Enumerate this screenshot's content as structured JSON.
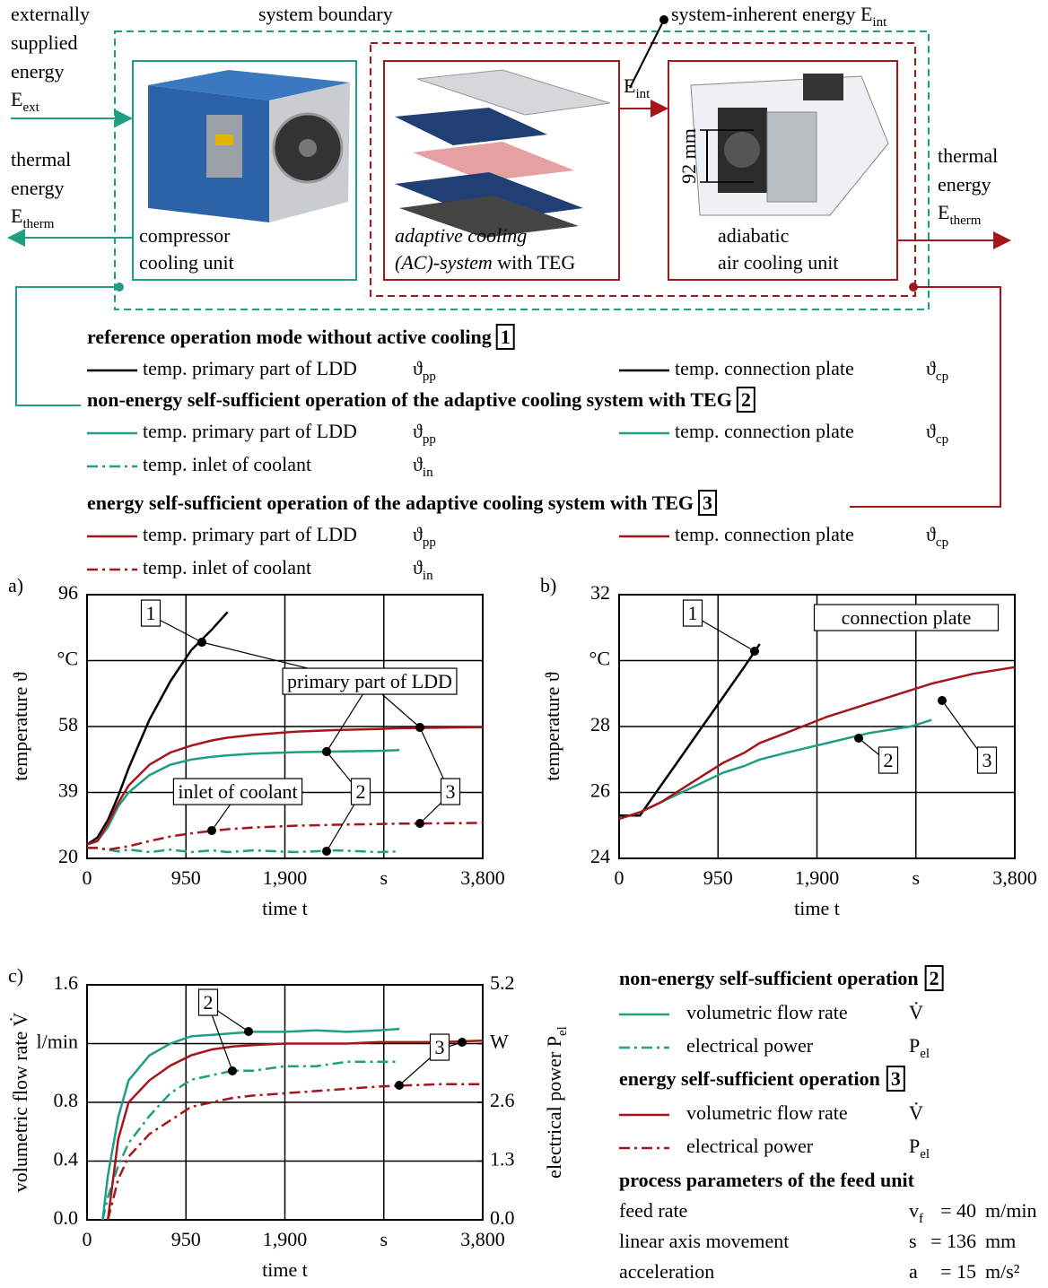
{
  "diagram": {
    "external_energy": {
      "lines": [
        "externally",
        "supplied",
        "energy"
      ],
      "symbol": "E",
      "sub": "ext"
    },
    "thermal_energy_left": {
      "lines": [
        "thermal",
        "energy"
      ],
      "symbol": "E",
      "sub": "therm"
    },
    "system_boundary": "system boundary",
    "inherent_energy": {
      "text": "system-inherent energy E",
      "sub": "int"
    },
    "flow_label": {
      "symbol": "E",
      "sub": "int"
    },
    "compressor": [
      "compressor",
      "cooling unit"
    ],
    "ac_system": {
      "line1": "adaptive cooling",
      "line2_italic": "(AC)-system",
      "line2_rest": " with TEG"
    },
    "air_unit": [
      "adiabatic",
      "air cooling unit"
    ],
    "dimension": "92 mm",
    "thermal_energy_right": {
      "lines": [
        "thermal",
        "energy"
      ],
      "symbol": "E",
      "sub": "therm"
    }
  },
  "legend": {
    "sections": [
      {
        "title": "reference operation mode without active cooling",
        "number": "1",
        "color": "#000000",
        "entries": [
          {
            "label": "temp. primary part of LDD",
            "symbol": "ϑ",
            "sub": "pp",
            "dash": "solid"
          },
          {
            "label": "temp. connection plate",
            "symbol": "ϑ",
            "sub": "cp",
            "dash": "solid"
          }
        ]
      },
      {
        "title": "non-energy self-sufficient operation of the adaptive cooling system with TEG",
        "number": "2",
        "color": "#1f9e83",
        "entries": [
          {
            "label": "temp. primary part of LDD",
            "symbol": "ϑ",
            "sub": "pp",
            "dash": "solid"
          },
          {
            "label": "temp. connection plate",
            "symbol": "ϑ",
            "sub": "cp",
            "dash": "solid"
          },
          {
            "label": "temp. inlet of coolant",
            "symbol": "ϑ",
            "sub": "in",
            "dash": "dash-dot"
          }
        ]
      },
      {
        "title": "energy self-sufficient operation of the adaptive cooling system with TEG",
        "number": "3",
        "color": "#a4161a",
        "entries": [
          {
            "label": "temp. primary part of LDD",
            "symbol": "ϑ",
            "sub": "pp",
            "dash": "solid"
          },
          {
            "label": "temp. connection plate",
            "symbol": "ϑ",
            "sub": "cp",
            "dash": "solid"
          },
          {
            "label": "temp. inlet of coolant",
            "symbol": "ϑ",
            "sub": "in",
            "dash": "dash-dot"
          }
        ]
      }
    ]
  },
  "chart_data": [
    {
      "type": "line",
      "panel": "a)",
      "xlabel": "time t",
      "ylabel": "temperature ϑ",
      "x": [
        0,
        100,
        200,
        300,
        400,
        600,
        800,
        1000,
        1200,
        1350,
        1600,
        2000,
        2400,
        2800,
        3000,
        3400,
        3800
      ],
      "xlim": [
        0,
        3800
      ],
      "xticks": [
        0,
        950,
        {
          "value": 1900,
          "label": "1,900"
        },
        {
          "value": 2850,
          "label": "s"
        },
        {
          "value": 3800,
          "label": "3,800"
        }
      ],
      "ylim": [
        20,
        96
      ],
      "yticks": [
        20,
        39,
        58,
        {
          "value": 77,
          "label": "°C"
        },
        96
      ],
      "grid": true,
      "series": [
        {
          "color": "#000000",
          "dash": "solid",
          "values": [
            24,
            26,
            31,
            38,
            46,
            60,
            71,
            80,
            86,
            91,
            null,
            null,
            null,
            null,
            null,
            null,
            null
          ]
        },
        {
          "color": "#1f9e83",
          "dash": "solid",
          "values": [
            24,
            25,
            29,
            35,
            39,
            44,
            47,
            48.5,
            49.3,
            49.7,
            50.2,
            50.6,
            50.8,
            51,
            51.2,
            null,
            null
          ]
        },
        {
          "color": "#a4161a",
          "dash": "solid",
          "values": [
            24,
            25,
            30,
            36,
            41,
            47,
            50.5,
            52.5,
            54,
            54.8,
            55.6,
            56.5,
            57,
            57.3,
            57.5,
            57.7,
            57.8
          ]
        },
        {
          "color": "#1f9e83",
          "dash": "dash-dot",
          "values": [
            23,
            23,
            22.5,
            22,
            22.5,
            21.8,
            22.5,
            21.8,
            22.3,
            21.8,
            22.3,
            21.8,
            22.3,
            21.8,
            22,
            null,
            null
          ]
        },
        {
          "color": "#a4161a",
          "dash": "dash-dot",
          "values": [
            23,
            23,
            22.5,
            23,
            23.5,
            25,
            26.3,
            27.2,
            27.9,
            28.4,
            28.9,
            29.4,
            29.7,
            29.9,
            30,
            30.1,
            30.2
          ]
        }
      ],
      "annotations": [
        "1",
        "primary part of LDD",
        "inlet of coolant",
        "2",
        "3"
      ]
    },
    {
      "type": "line",
      "panel": "b)",
      "xlabel": "time t",
      "ylabel": "temperature ϑ",
      "x": [
        0,
        200,
        400,
        600,
        800,
        1000,
        1200,
        1350,
        1600,
        2000,
        2400,
        2800,
        3000,
        3400,
        3800
      ],
      "xlim": [
        0,
        3800
      ],
      "xticks": [
        0,
        950,
        {
          "value": 1900,
          "label": "1,900"
        },
        {
          "value": 2850,
          "label": "s"
        },
        {
          "value": 3800,
          "label": "3,800"
        }
      ],
      "ylim": [
        24,
        32
      ],
      "yticks": [
        24,
        26,
        28,
        {
          "value": 30,
          "label": "°C"
        },
        32
      ],
      "grid": true,
      "series": [
        {
          "color": "#000000",
          "dash": "solid",
          "values": [
            25.3,
            25.3,
            26.2,
            27.1,
            28.0,
            28.9,
            29.8,
            30.5,
            null,
            null,
            null,
            null,
            null,
            null,
            null
          ]
        },
        {
          "color": "#1f9e83",
          "dash": "solid",
          "values": [
            25.2,
            25.4,
            25.7,
            26,
            26.3,
            26.6,
            26.8,
            27,
            27.2,
            27.5,
            27.8,
            28,
            28.2,
            null,
            null
          ]
        },
        {
          "color": "#a4161a",
          "dash": "solid",
          "values": [
            25.2,
            25.4,
            25.7,
            26.1,
            26.5,
            26.9,
            27.2,
            27.5,
            27.8,
            28.3,
            28.7,
            29.1,
            29.3,
            29.6,
            29.8
          ]
        }
      ],
      "annotations": [
        "1",
        "connection plate",
        "2",
        "3"
      ]
    },
    {
      "type": "line",
      "panel": "c)",
      "xlabel": "time t",
      "ylabel": "volumetric flow rate V̇",
      "y2label": "electrical power P",
      "y2label_sub": "el",
      "x": [
        0,
        150,
        200,
        300,
        400,
        600,
        800,
        1000,
        1200,
        1400,
        1600,
        1900,
        2200,
        2500,
        2800,
        3000,
        3400,
        3800
      ],
      "xlim": [
        0,
        3800
      ],
      "xticks": [
        0,
        950,
        {
          "value": 1900,
          "label": "1,900"
        },
        {
          "value": 2850,
          "label": "s"
        },
        {
          "value": 3800,
          "label": "3,800"
        }
      ],
      "ylim": [
        0,
        1.6
      ],
      "yticks": [
        {
          "value": 0,
          "label": "0.0"
        },
        0.4,
        0.8,
        {
          "value": 1.2,
          "label": "l/min"
        },
        1.6
      ],
      "y2lim": [
        0,
        5.2
      ],
      "y2ticks": [
        {
          "value": 0,
          "label": "0.0"
        },
        1.3,
        2.6,
        {
          "value": 3.9,
          "label": "W"
        },
        5.2
      ],
      "grid": true,
      "legend_groups": [
        {
          "title": "non-energy self-sufficient operation",
          "number": "2",
          "color": "#1f9e83"
        },
        {
          "title": "energy self-sufficient operation",
          "number": "3",
          "color": "#a4161a"
        }
      ],
      "series": [
        {
          "name": "volumetric flow rate",
          "symbol": "V̇",
          "group": 0,
          "color": "#1f9e83",
          "dash": "solid",
          "values": [
            null,
            0,
            0.3,
            0.7,
            0.95,
            1.12,
            1.2,
            1.25,
            1.26,
            1.27,
            1.28,
            1.28,
            1.29,
            1.28,
            1.29,
            1.3,
            null,
            null
          ]
        },
        {
          "name": "electrical power",
          "symbol": "P",
          "symbol_sub": "el",
          "group": 0,
          "axis": "y2",
          "color": "#1f9e83",
          "dash": "dash-dot",
          "values": [
            null,
            0,
            0.5,
            1.2,
            1.7,
            2.3,
            2.8,
            3.1,
            3.2,
            3.3,
            3.3,
            3.4,
            3.4,
            3.5,
            3.5,
            3.5,
            null,
            null
          ]
        },
        {
          "name": "volumetric flow rate",
          "symbol": "V̇",
          "group": 1,
          "color": "#a4161a",
          "dash": "solid",
          "values": [
            null,
            null,
            0,
            0.55,
            0.8,
            0.95,
            1.05,
            1.12,
            1.16,
            1.18,
            1.19,
            1.2,
            1.2,
            1.2,
            1.21,
            1.21,
            1.21,
            1.22
          ]
        },
        {
          "name": "electrical power",
          "symbol": "P",
          "symbol_sub": "el",
          "group": 1,
          "axis": "y2",
          "color": "#a4161a",
          "dash": "dash-dot",
          "values": [
            null,
            null,
            0,
            0.9,
            1.4,
            1.9,
            2.2,
            2.5,
            2.6,
            2.7,
            2.75,
            2.8,
            2.85,
            2.9,
            2.95,
            2.97,
            3.0,
            3.0
          ]
        }
      ],
      "annotations": [
        "2",
        "3"
      ]
    }
  ],
  "process_parameters": {
    "title": "process parameters of the feed unit",
    "rows": [
      {
        "label": "feed rate",
        "symbol": "v",
        "sub": "f",
        "value": "= 40",
        "unit": "m/min"
      },
      {
        "label": "linear axis movement",
        "symbol": "s",
        "value": "= 136",
        "unit": "mm"
      },
      {
        "label": "acceleration",
        "symbol": "a",
        "value": "= 15",
        "unit": "m/s²"
      }
    ]
  }
}
